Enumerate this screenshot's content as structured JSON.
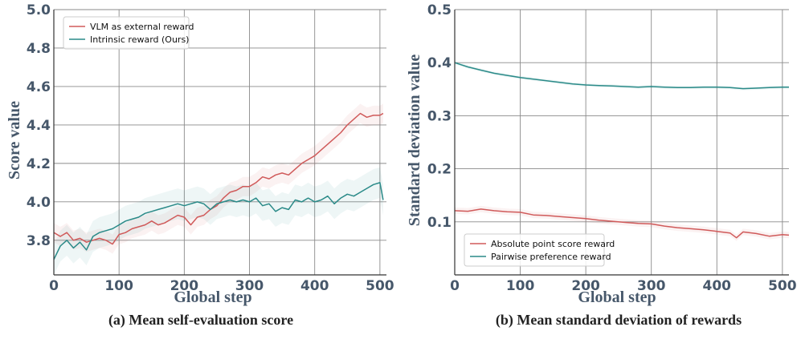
{
  "chart_data": [
    {
      "type": "line",
      "caption": "(a) Mean self-evaluation score",
      "xlabel": "Global step",
      "ylabel": "Score value",
      "xlim": [
        0,
        510
      ],
      "ylim": [
        3.62,
        5.0
      ],
      "xticks": [
        0,
        100,
        200,
        300,
        400,
        500
      ],
      "yticks": [
        3.8,
        4.0,
        4.2,
        4.4,
        4.6,
        4.8,
        5.0
      ],
      "ytick_labels": [
        "3.8",
        "4.0",
        "4.2",
        "4.4",
        "4.6",
        "4.8",
        "5.0"
      ],
      "legend_position": "top-left",
      "series": [
        {
          "name": "VLM as external reward",
          "color": "#d05a5a",
          "x": [
            0,
            10,
            20,
            30,
            40,
            50,
            60,
            70,
            80,
            90,
            100,
            110,
            120,
            130,
            140,
            150,
            160,
            170,
            180,
            190,
            200,
            210,
            220,
            230,
            240,
            250,
            260,
            270,
            280,
            290,
            300,
            310,
            320,
            330,
            340,
            350,
            360,
            370,
            380,
            390,
            400,
            410,
            420,
            430,
            440,
            450,
            460,
            470,
            480,
            490,
            500,
            505
          ],
          "y": [
            3.84,
            3.82,
            3.84,
            3.8,
            3.81,
            3.79,
            3.8,
            3.81,
            3.8,
            3.78,
            3.83,
            3.84,
            3.86,
            3.87,
            3.88,
            3.9,
            3.88,
            3.89,
            3.91,
            3.93,
            3.92,
            3.88,
            3.92,
            3.93,
            3.96,
            3.98,
            4.02,
            4.05,
            4.06,
            4.08,
            4.08,
            4.1,
            4.13,
            4.12,
            4.14,
            4.15,
            4.14,
            4.17,
            4.2,
            4.22,
            4.24,
            4.27,
            4.3,
            4.33,
            4.36,
            4.4,
            4.43,
            4.46,
            4.44,
            4.45,
            4.45,
            4.46
          ],
          "band": 0.05
        },
        {
          "name": "Intrinsic reward (Ours)",
          "color": "#2a8a88",
          "x": [
            0,
            10,
            20,
            30,
            40,
            50,
            60,
            70,
            80,
            90,
            100,
            110,
            120,
            130,
            140,
            150,
            160,
            170,
            180,
            190,
            200,
            210,
            220,
            230,
            240,
            250,
            260,
            270,
            280,
            290,
            300,
            310,
            320,
            330,
            340,
            350,
            360,
            370,
            380,
            390,
            400,
            410,
            420,
            430,
            440,
            450,
            460,
            470,
            480,
            490,
            500,
            505
          ],
          "y": [
            3.7,
            3.77,
            3.8,
            3.76,
            3.79,
            3.75,
            3.82,
            3.84,
            3.85,
            3.86,
            3.88,
            3.9,
            3.91,
            3.92,
            3.94,
            3.95,
            3.96,
            3.97,
            3.98,
            3.99,
            3.98,
            3.99,
            4.0,
            3.99,
            3.96,
            3.99,
            4.0,
            4.01,
            4.0,
            4.01,
            4.0,
            4.02,
            3.98,
            3.99,
            3.95,
            3.97,
            3.96,
            4.01,
            4.0,
            4.02,
            4.0,
            4.01,
            4.03,
            3.99,
            4.02,
            4.04,
            4.03,
            4.05,
            4.07,
            4.09,
            4.1,
            4.01
          ],
          "band": 0.08
        }
      ]
    },
    {
      "type": "line",
      "caption": "(b) Mean standard deviation of rewards",
      "xlabel": "Global step",
      "ylabel": "Standard deviation value",
      "xlim": [
        0,
        510
      ],
      "ylim": [
        0.0,
        0.5
      ],
      "xticks": [
        0,
        100,
        200,
        300,
        400,
        500
      ],
      "yticks": [
        0.1,
        0.2,
        0.3,
        0.4,
        0.5
      ],
      "ytick_labels": [
        "0.1",
        "0.2",
        "0.3",
        "0.4",
        "0.5"
      ],
      "legend_position": "bottom-left",
      "series": [
        {
          "name": "Absolute point score reward",
          "color": "#d05a5a",
          "x": [
            0,
            20,
            40,
            60,
            80,
            100,
            120,
            140,
            160,
            180,
            200,
            220,
            240,
            260,
            280,
            300,
            320,
            340,
            360,
            380,
            400,
            420,
            430,
            440,
            460,
            480,
            500,
            510
          ],
          "y": [
            0.121,
            0.12,
            0.124,
            0.121,
            0.119,
            0.118,
            0.113,
            0.112,
            0.11,
            0.108,
            0.106,
            0.103,
            0.101,
            0.099,
            0.097,
            0.096,
            0.092,
            0.089,
            0.087,
            0.085,
            0.082,
            0.079,
            0.07,
            0.081,
            0.078,
            0.073,
            0.076,
            0.075
          ],
          "band": 0.006
        },
        {
          "name": "Pairwise preference reward",
          "color": "#2a8a88",
          "x": [
            0,
            20,
            40,
            60,
            80,
            100,
            120,
            140,
            160,
            180,
            200,
            220,
            240,
            260,
            280,
            300,
            320,
            340,
            360,
            380,
            400,
            420,
            440,
            460,
            480,
            500,
            510
          ],
          "y": [
            0.4,
            0.392,
            0.386,
            0.38,
            0.376,
            0.372,
            0.369,
            0.366,
            0.363,
            0.36,
            0.358,
            0.357,
            0.356,
            0.355,
            0.354,
            0.355,
            0.354,
            0.353,
            0.353,
            0.354,
            0.354,
            0.353,
            0.351,
            0.352,
            0.353,
            0.354,
            0.354
          ],
          "band": 0.003
        }
      ]
    }
  ]
}
